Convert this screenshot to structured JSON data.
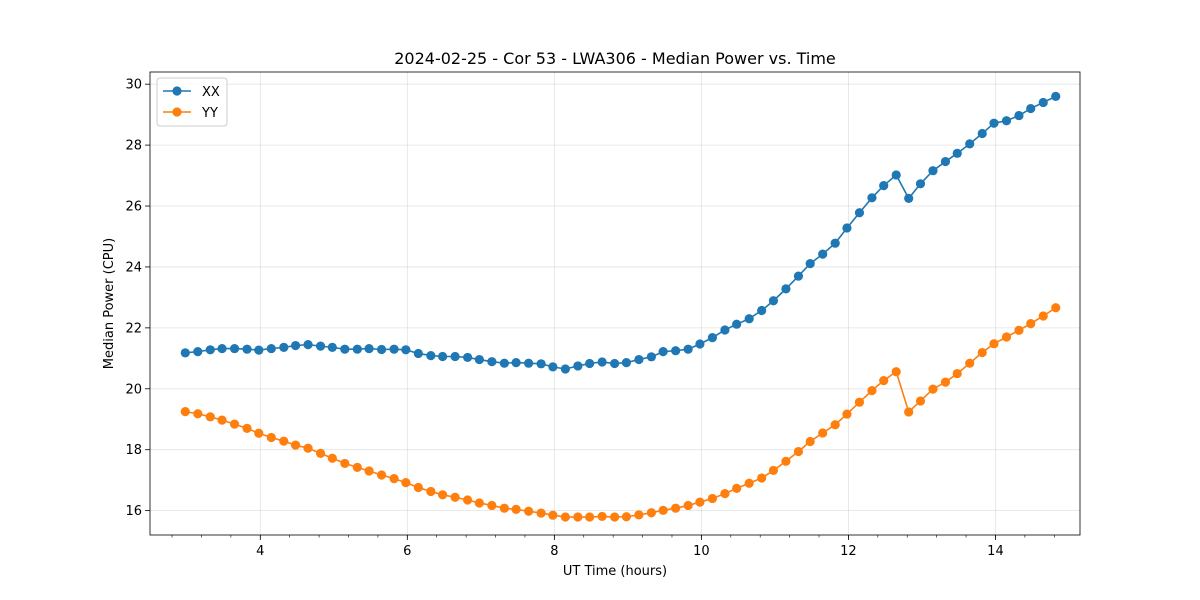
{
  "chart_data": {
    "type": "line",
    "title": "2024-02-25 - Cor 53 - LWA306 - Median Power vs. Time",
    "xlabel": "UT Time (hours)",
    "ylabel": "Median Power (CPU)",
    "xlim": [
      2.5,
      15.15
    ],
    "ylim": [
      15.2,
      30.4
    ],
    "grid": true,
    "legend_position": "top-left",
    "x_ticks": [
      4,
      6,
      8,
      10,
      12,
      14
    ],
    "x_tick_labels": [
      "4",
      "6",
      "8",
      "10",
      "12",
      "14"
    ],
    "y_ticks": [
      16,
      18,
      20,
      22,
      24,
      26,
      28,
      30
    ],
    "y_tick_labels": [
      "16",
      "18",
      "20",
      "22",
      "24",
      "26",
      "28",
      "30"
    ],
    "x_minor_step": 0.4,
    "x": [
      2.98,
      3.15,
      3.32,
      3.48,
      3.65,
      3.82,
      3.98,
      4.15,
      4.32,
      4.48,
      4.65,
      4.82,
      4.98,
      5.15,
      5.32,
      5.48,
      5.65,
      5.82,
      5.98,
      6.15,
      6.32,
      6.48,
      6.65,
      6.82,
      6.98,
      7.15,
      7.32,
      7.48,
      7.65,
      7.82,
      7.98,
      8.15,
      8.32,
      8.48,
      8.65,
      8.82,
      8.98,
      9.15,
      9.32,
      9.48,
      9.65,
      9.82,
      9.98,
      10.15,
      10.32,
      10.48,
      10.65,
      10.82,
      10.98,
      11.15,
      11.32,
      11.48,
      11.65,
      11.82,
      11.98,
      12.15,
      12.32,
      12.48,
      12.65,
      12.82,
      12.98,
      13.15,
      13.32,
      13.48,
      13.65,
      13.82,
      13.98,
      14.15,
      14.32,
      14.48,
      14.65,
      14.82
    ],
    "series": [
      {
        "name": "XX",
        "color": "#1f77b4",
        "values": [
          21.18,
          21.22,
          21.28,
          21.32,
          21.32,
          21.3,
          21.27,
          21.32,
          21.36,
          21.42,
          21.45,
          21.4,
          21.36,
          21.3,
          21.3,
          21.32,
          21.29,
          21.3,
          21.28,
          21.16,
          21.09,
          21.06,
          21.06,
          21.03,
          20.96,
          20.89,
          20.84,
          20.86,
          20.84,
          20.82,
          20.72,
          20.65,
          20.75,
          20.83,
          20.88,
          20.83,
          20.86,
          20.96,
          21.05,
          21.22,
          21.25,
          21.3,
          21.47,
          21.68,
          21.93,
          22.12,
          22.3,
          22.57,
          22.89,
          23.28,
          23.7,
          24.11,
          24.42,
          24.78,
          25.28,
          25.78,
          26.27,
          26.67,
          27.02,
          26.25,
          26.73,
          27.16,
          27.46,
          27.73,
          28.04,
          28.38,
          28.72,
          28.8,
          28.97,
          29.2,
          29.4,
          29.6
        ]
      },
      {
        "name": "YY",
        "color": "#ff7f0e",
        "values": [
          19.25,
          19.18,
          19.08,
          18.97,
          18.84,
          18.7,
          18.54,
          18.4,
          18.28,
          18.15,
          18.05,
          17.88,
          17.72,
          17.55,
          17.42,
          17.3,
          17.17,
          17.05,
          16.92,
          16.76,
          16.63,
          16.52,
          16.44,
          16.35,
          16.25,
          16.17,
          16.08,
          16.04,
          15.98,
          15.92,
          15.85,
          15.79,
          15.79,
          15.79,
          15.81,
          15.79,
          15.8,
          15.86,
          15.93,
          16.01,
          16.08,
          16.17,
          16.28,
          16.4,
          16.56,
          16.73,
          16.9,
          17.07,
          17.32,
          17.62,
          17.94,
          18.27,
          18.55,
          18.82,
          19.17,
          19.56,
          19.94,
          20.27,
          20.56,
          19.24,
          19.6,
          19.99,
          20.22,
          20.5,
          20.84,
          21.19,
          21.48,
          21.7,
          21.92,
          22.14,
          22.39,
          22.66
        ]
      }
    ]
  }
}
